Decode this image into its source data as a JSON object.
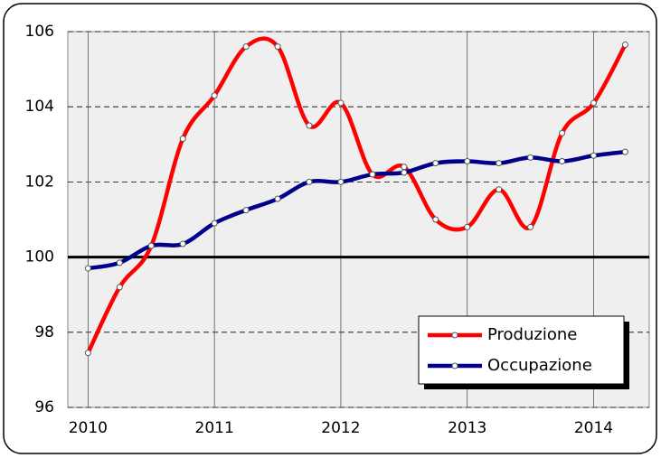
{
  "chart_data": {
    "type": "line",
    "x": [
      2010,
      2010.25,
      2010.5,
      2010.75,
      2011,
      2011.25,
      2011.5,
      2011.75,
      2012,
      2012.25,
      2012.5,
      2012.75,
      2013,
      2013.25,
      2013.5,
      2013.75,
      2014,
      2014.25
    ],
    "series": [
      {
        "name": "Produzione",
        "color": "#ff0000",
        "values": [
          97.45,
          99.2,
          100.3,
          103.15,
          104.3,
          105.6,
          105.6,
          103.5,
          104.1,
          102.2,
          102.4,
          101.0,
          100.8,
          101.8,
          100.8,
          103.3,
          104.1,
          105.65
        ]
      },
      {
        "name": "Occupazione",
        "color": "#00008b",
        "values": [
          99.7,
          99.85,
          100.3,
          100.35,
          100.9,
          101.25,
          101.55,
          102.0,
          102.0,
          102.2,
          102.25,
          102.5,
          102.55,
          102.5,
          102.65,
          102.55,
          102.7,
          102.8
        ]
      }
    ],
    "xlim": [
      2009.84,
      2014.44
    ],
    "xticks": [
      2010,
      2011,
      2012,
      2013,
      2014
    ],
    "ylim": [
      96,
      106
    ],
    "yticks": [
      96,
      98,
      100,
      102,
      104,
      106
    ],
    "reference_line": 100,
    "grid": true,
    "legend": "lower right"
  }
}
